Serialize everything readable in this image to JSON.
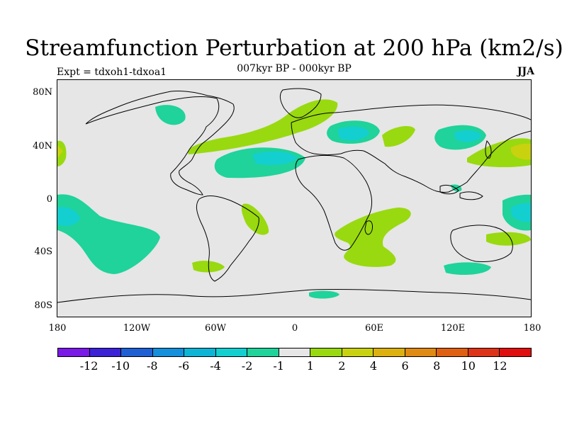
{
  "title": "Streamfunction Perturbation at 200 hPa (km2/s)",
  "subtitle": "007kyr BP - 000kyr BP",
  "left_label": "Expt = tdxoh1-tdxoa1",
  "right_label": "JJA",
  "lat_labels": [
    "80N",
    "40N",
    "0",
    "40S",
    "80S"
  ],
  "lon_labels": [
    "180",
    "120W",
    "60W",
    "0",
    "60E",
    "120E",
    "180"
  ],
  "colorbar": {
    "colors": [
      "#7a1ae6",
      "#3c22d6",
      "#1f5fd4",
      "#138fdb",
      "#0db4d6",
      "#13cfd0",
      "#1fd39a",
      "#e6e6e6",
      "#99d90f",
      "#c9d20f",
      "#dcb10f",
      "#df8a13",
      "#df6012",
      "#dd3318",
      "#e00f0f"
    ],
    "labels": [
      "-12",
      "-10",
      "-8",
      "-6",
      "-4",
      "-2",
      "-1",
      "1",
      "2",
      "4",
      "6",
      "8",
      "10",
      "12"
    ]
  },
  "palette": {
    "neg1": "#1fd39a",
    "neg2": "#13cfd0",
    "pos1": "#99d90f",
    "pos2": "#c9d20f",
    "background": "#e6e6e6",
    "coast": "#000000"
  }
}
